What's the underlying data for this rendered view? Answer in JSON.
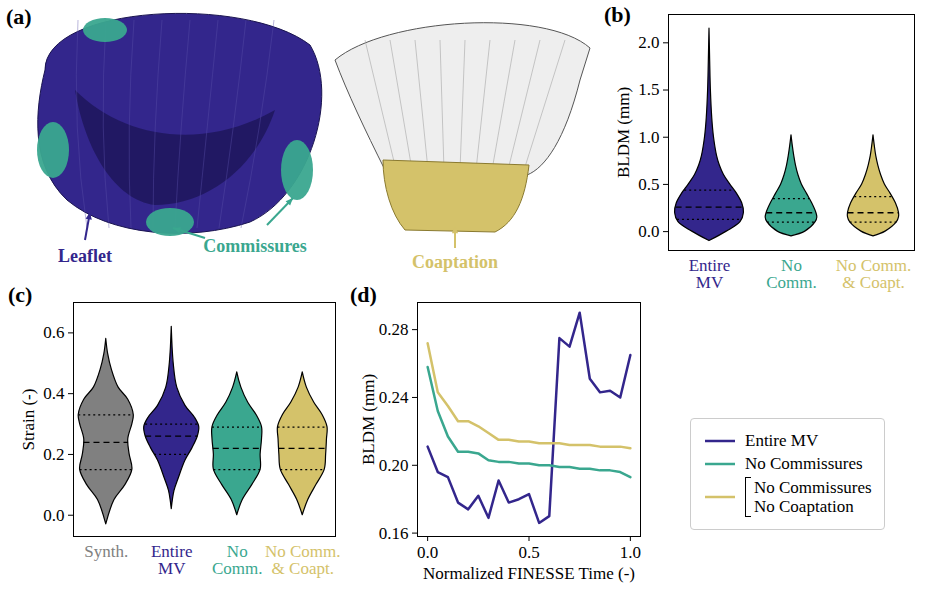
{
  "illustration": {
    "title": "(a)",
    "labels": [
      {
        "text": "Leaflet",
        "color": "#33268c"
      },
      {
        "text": "Commissures",
        "color": "#3aa78f"
      },
      {
        "text": "Coaptation",
        "color": "#d4c26a"
      }
    ]
  },
  "chart_data": [
    {
      "title": "(b)",
      "type": "violin",
      "ylabel": "BLDM (mm)",
      "ylim": [
        -0.2,
        2.3
      ],
      "yticks": [
        {
          "value": 0,
          "label": "0.0"
        },
        0.5,
        {
          "value": 1,
          "label": "1.0"
        },
        1.5,
        {
          "value": 2,
          "label": "2.0"
        }
      ],
      "series": [
        {
          "name": "Entire MV",
          "color": "#33268c",
          "y": [
            -0.1,
            0.0,
            0.1,
            0.2,
            0.3,
            0.4,
            0.5,
            0.6,
            0.7,
            0.8,
            1.0,
            1.2,
            1.5,
            1.8,
            2.15
          ],
          "density": [
            0,
            0.5,
            0.9,
            1.0,
            0.95,
            0.8,
            0.6,
            0.42,
            0.3,
            0.22,
            0.13,
            0.08,
            0.04,
            0.02,
            0
          ],
          "quartiles": [
            0.13,
            0.26,
            0.44
          ]
        },
        {
          "name": "No Comm.",
          "color": "#3aa78f",
          "y": [
            -0.05,
            0.0,
            0.1,
            0.15,
            0.2,
            0.3,
            0.4,
            0.5,
            0.6,
            0.7,
            0.8,
            0.9,
            1.02
          ],
          "density": [
            0,
            0.4,
            0.7,
            0.75,
            0.72,
            0.6,
            0.45,
            0.3,
            0.2,
            0.13,
            0.08,
            0.04,
            0
          ],
          "quartiles": [
            0.1,
            0.2,
            0.35
          ]
        },
        {
          "name": "No Comm. & Coapt.",
          "color": "#d4c26a",
          "y": [
            -0.05,
            0.0,
            0.1,
            0.15,
            0.2,
            0.3,
            0.4,
            0.5,
            0.6,
            0.7,
            0.8,
            0.9,
            1.02
          ],
          "density": [
            0,
            0.35,
            0.68,
            0.74,
            0.74,
            0.65,
            0.5,
            0.33,
            0.22,
            0.14,
            0.08,
            0.04,
            0
          ],
          "quartiles": [
            0.1,
            0.2,
            0.37
          ]
        }
      ]
    },
    {
      "title": "(c)",
      "type": "violin",
      "ylabel": "Strain (-)",
      "ylim": [
        -0.07,
        0.7
      ],
      "yticks": [
        {
          "value": 0,
          "label": "0.0"
        },
        0.2,
        0.4,
        0.6
      ],
      "series": [
        {
          "name": "Synth.",
          "color": "#808080",
          "y": [
            -0.03,
            0.05,
            0.1,
            0.15,
            0.2,
            0.25,
            0.3,
            0.33,
            0.38,
            0.42,
            0.48,
            0.53,
            0.58
          ],
          "density": [
            0,
            0.3,
            0.7,
            0.95,
            0.85,
            0.8,
            0.95,
            1.0,
            0.8,
            0.45,
            0.2,
            0.07,
            0
          ],
          "quartiles": [
            0.15,
            0.24,
            0.33
          ]
        },
        {
          "name": "Entire MV",
          "color": "#33268c",
          "y": [
            0.02,
            0.08,
            0.12,
            0.18,
            0.22,
            0.26,
            0.29,
            0.32,
            0.36,
            0.42,
            0.5,
            0.62
          ],
          "density": [
            0,
            0.1,
            0.25,
            0.5,
            0.75,
            0.95,
            1.0,
            0.85,
            0.5,
            0.2,
            0.07,
            0
          ],
          "quartiles": [
            0.2,
            0.26,
            0.3
          ]
        },
        {
          "name": "No Comm.",
          "color": "#3aa78f",
          "y": [
            0.0,
            0.05,
            0.1,
            0.15,
            0.2,
            0.25,
            0.29,
            0.33,
            0.37,
            0.42,
            0.47
          ],
          "density": [
            0,
            0.2,
            0.55,
            0.85,
            0.85,
            0.9,
            0.9,
            0.7,
            0.4,
            0.15,
            0
          ],
          "quartiles": [
            0.15,
            0.22,
            0.29
          ]
        },
        {
          "name": "No Comm. & Coapt.",
          "color": "#d4c26a",
          "y": [
            0.0,
            0.05,
            0.1,
            0.15,
            0.2,
            0.25,
            0.29,
            0.33,
            0.37,
            0.42,
            0.47
          ],
          "density": [
            0,
            0.2,
            0.5,
            0.8,
            0.85,
            0.88,
            0.9,
            0.72,
            0.42,
            0.15,
            0
          ],
          "quartiles": [
            0.15,
            0.22,
            0.29
          ]
        }
      ]
    },
    {
      "title": "(d)",
      "type": "line",
      "xlabel": "Normalized FINESSE Time (-)",
      "ylabel": "BLDM (mm)",
      "x": [
        0.0,
        0.05,
        0.1,
        0.15,
        0.2,
        0.25,
        0.3,
        0.35,
        0.4,
        0.45,
        0.5,
        0.55,
        0.6,
        0.65,
        0.7,
        0.75,
        0.8,
        0.85,
        0.9,
        0.95,
        1.0
      ],
      "xlim": [
        -0.05,
        1.05
      ],
      "xticks": [
        {
          "value": 0,
          "label": "0.0"
        },
        0.5,
        {
          "value": 1,
          "label": "1.0"
        }
      ],
      "ylim": [
        0.158,
        0.296
      ],
      "yticks": [
        0.16,
        {
          "value": 0.2,
          "label": "0.20"
        },
        0.24,
        0.28
      ],
      "legend": "right",
      "series": [
        {
          "name": "Entire MV",
          "color": "#33268c",
          "values": [
            0.211,
            0.196,
            0.193,
            0.178,
            0.174,
            0.182,
            0.169,
            0.191,
            0.178,
            0.18,
            0.183,
            0.166,
            0.17,
            0.275,
            0.27,
            0.29,
            0.251,
            0.243,
            0.244,
            0.24,
            0.265
          ]
        },
        {
          "name": "No Commissures",
          "color": "#3aa78f",
          "values": [
            0.258,
            0.232,
            0.217,
            0.208,
            0.208,
            0.207,
            0.203,
            0.202,
            0.202,
            0.201,
            0.201,
            0.2,
            0.2,
            0.199,
            0.199,
            0.198,
            0.198,
            0.197,
            0.197,
            0.196,
            0.193
          ]
        },
        {
          "name": "No Commissures No Coaptation",
          "color": "#d4c26a",
          "values": [
            0.272,
            0.243,
            0.235,
            0.226,
            0.226,
            0.223,
            0.219,
            0.215,
            0.215,
            0.214,
            0.214,
            0.213,
            0.213,
            0.213,
            0.212,
            0.212,
            0.212,
            0.211,
            0.211,
            0.211,
            0.21
          ]
        }
      ]
    }
  ]
}
